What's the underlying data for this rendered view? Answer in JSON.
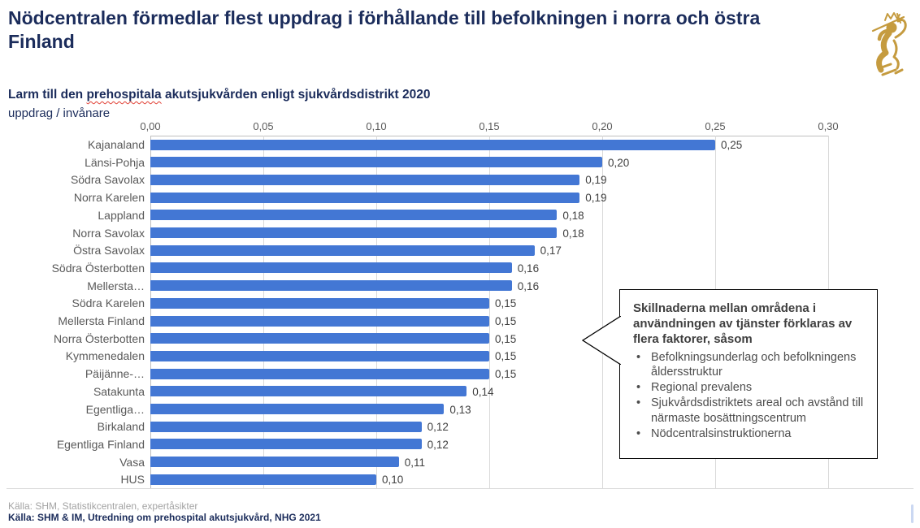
{
  "header": {
    "title": "Nödcentralen förmedlar flest uppdrag i förhållande till befolkningen i norra och östra Finland"
  },
  "logo": {
    "name": "finnish-lion-coat-of-arms",
    "color": "#c59b3f"
  },
  "subtitle": {
    "part1": "Larm till den ",
    "misspelled_word": "prehospitala",
    "part2": " akutsjukvården enligt sjukvårdsdistrikt 2020"
  },
  "unit_label": "uppdrag / invånare",
  "chart_data": {
    "type": "bar",
    "orientation": "horizontal",
    "title": "Larm till den prehospitala akutsjukvården enligt sjukvårdsdistrikt 2020",
    "xlabel": "uppdrag / invånare",
    "xlim": [
      0,
      0.3
    ],
    "xticks": [
      "0,00",
      "0,05",
      "0,10",
      "0,15",
      "0,20",
      "0,25",
      "0,30"
    ],
    "xtick_values": [
      0,
      0.05,
      0.1,
      0.15,
      0.2,
      0.25,
      0.3
    ],
    "grid": "vertical",
    "legend": "none",
    "bar_color": "#4377d4",
    "categories": [
      "Kajanaland",
      "Länsi-Pohja",
      "Södra Savolax",
      "Norra Karelen",
      "Lappland",
      "Norra Savolax",
      "Östra Savolax",
      "Södra Österbotten",
      "Mellersta…",
      "Södra Karelen",
      "Mellersta Finland",
      "Norra Österbotten",
      "Kymmenedalen",
      "Päijänne-…",
      "Satakunta",
      "Egentliga…",
      "Birkaland",
      "Egentliga Finland",
      "Vasa",
      "HUS"
    ],
    "values": [
      0.25,
      0.2,
      0.19,
      0.19,
      0.18,
      0.18,
      0.17,
      0.16,
      0.16,
      0.15,
      0.15,
      0.15,
      0.15,
      0.15,
      0.14,
      0.13,
      0.12,
      0.12,
      0.11,
      0.1
    ],
    "labels": [
      "0,25",
      "0,20",
      "0,19",
      "0,19",
      "0,18",
      "0,18",
      "0,17",
      "0,16",
      "0,16",
      "0,15",
      "0,15",
      "0,15",
      "0,15",
      "0,15",
      "0,14",
      "0,13",
      "0,12",
      "0,12",
      "0,11",
      "0,10"
    ]
  },
  "callout": {
    "heading": "Skillnaderna mellan områdena i användningen av tjänster förklaras av flera faktorer, såsom",
    "bullets": [
      "Befolkningsunderlag och befolkningens åldersstruktur",
      "Regional prevalens",
      "Sjukvårdsdistriktets areal och avstånd till närmaste bosättningscentrum",
      "Nödcentralsinstruktionerna"
    ]
  },
  "footer": {
    "line1": "Källa: SHM, Statistikcentralen, expertåsikter",
    "line2": "Källa: SHM & IM, Utredning om prehospital akutsjukvård, NHG 2021"
  }
}
